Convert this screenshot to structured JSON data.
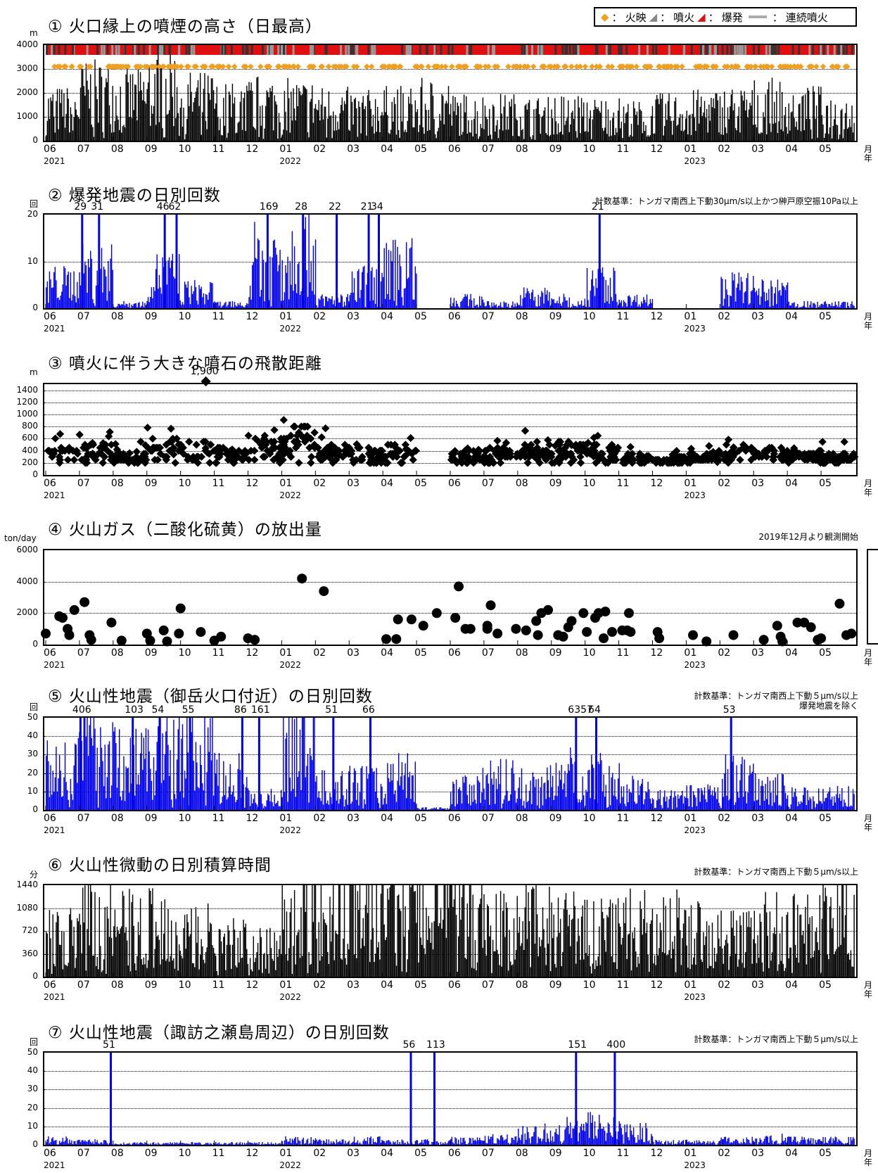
{
  "legend": {
    "glow": "火映",
    "eruption": "噴火",
    "explosion": "爆発",
    "continuous": "連続噴火",
    "sep": "："
  },
  "axis": {
    "months": [
      "06",
      "07",
      "08",
      "09",
      "10",
      "11",
      "12",
      "01",
      "02",
      "03",
      "04",
      "05",
      "06",
      "07",
      "08",
      "09",
      "10",
      "11",
      "12",
      "01",
      "02",
      "03",
      "04",
      "05"
    ],
    "years": [
      "2021",
      "2022",
      "2023"
    ],
    "month_word": "月",
    "year_word": "年"
  },
  "chart_data": [
    {
      "id": "p1",
      "type": "bar",
      "title": "① 火口縁上の噴煙の高さ（日最高）",
      "unit": "m",
      "yticks": [
        "4000",
        "3000",
        "2000",
        "1000",
        "0"
      ],
      "ylim": [
        0,
        4000
      ],
      "colors": {
        "bars": "#000000",
        "explosion": "#e01010",
        "glow": "#f0a020"
      },
      "profile": [
        1500,
        2200,
        2000,
        2600,
        1900,
        1600,
        1800,
        1700,
        1500,
        1400,
        1500,
        1700,
        1300,
        1300,
        1200,
        1300,
        1200,
        1100,
        1300,
        1400,
        1500,
        1700,
        1500,
        1300
      ],
      "peaks": [
        {
          "label": "",
          "x": 0.1,
          "y": 3200
        }
      ]
    },
    {
      "id": "p2",
      "type": "bar",
      "title": "② 爆発地震の日別回数",
      "unit": "回",
      "note": "計数基準：トンガマ南西上下動30μm/s以上かつ榊戸原空振10Pa以上",
      "yticks": [
        "20",
        "10",
        "0"
      ],
      "ylim": [
        0,
        20
      ],
      "colors": {
        "bars": "#0000ee"
      },
      "profile": [
        6,
        9,
        1,
        8,
        4,
        1,
        12,
        14,
        2,
        6,
        10,
        0,
        2,
        1,
        3,
        2,
        6,
        2,
        0,
        0,
        5,
        4,
        1,
        1
      ],
      "peak_labels": [
        {
          "label": "29",
          "month": 1.05
        },
        {
          "label": "31",
          "month": 1.55
        },
        {
          "label": "46",
          "month": 3.5
        },
        {
          "label": "62",
          "month": 3.85
        },
        {
          "label": "169",
          "month": 6.55
        },
        {
          "label": "28",
          "month": 7.6
        },
        {
          "label": "22",
          "month": 8.6
        },
        {
          "label": "21",
          "month": 9.55
        },
        {
          "label": "34",
          "month": 9.85
        },
        {
          "label": "21",
          "month": 16.4
        }
      ]
    },
    {
      "id": "p3",
      "type": "scatter",
      "title": "③ 噴火に伴う大きな噴石の飛散距離",
      "unit": "m",
      "yticks": [
        "1400",
        "1200",
        "1000",
        "800",
        "600",
        "400",
        "200",
        "0"
      ],
      "ylim": [
        0,
        1500
      ],
      "outlier": {
        "label": "1,900",
        "month": 4.75
      },
      "profile": [
        400,
        450,
        300,
        600,
        500,
        400,
        600,
        800,
        450,
        400,
        450,
        0,
        350,
        400,
        500,
        500,
        450,
        300,
        250,
        300,
        450,
        400,
        350,
        300
      ]
    },
    {
      "id": "p4",
      "type": "scatter",
      "title": "④ 火山ガス（二酸化硫黄）の放出量",
      "unit": "ton/day",
      "note": "2019年12月より観測開始",
      "yticks": [
        "6000",
        "4000",
        "2000",
        "0"
      ],
      "ylim": [
        0,
        6000
      ],
      "points": [
        {
          "m": 0.0,
          "v": 700
        },
        {
          "m": 0.4,
          "v": 1800
        },
        {
          "m": 0.5,
          "v": 1700
        },
        {
          "m": 0.65,
          "v": 1000
        },
        {
          "m": 0.7,
          "v": 600
        },
        {
          "m": 0.85,
          "v": 2200
        },
        {
          "m": 1.15,
          "v": 2700
        },
        {
          "m": 1.3,
          "v": 600
        },
        {
          "m": 1.35,
          "v": 300
        },
        {
          "m": 1.95,
          "v": 1400
        },
        {
          "m": 2.25,
          "v": 250
        },
        {
          "m": 3.0,
          "v": 700
        },
        {
          "m": 3.1,
          "v": 250
        },
        {
          "m": 3.5,
          "v": 900
        },
        {
          "m": 3.6,
          "v": 200
        },
        {
          "m": 3.95,
          "v": 700
        },
        {
          "m": 4.0,
          "v": 2300
        },
        {
          "m": 4.6,
          "v": 800
        },
        {
          "m": 5.0,
          "v": 250
        },
        {
          "m": 5.2,
          "v": 500
        },
        {
          "m": 6.0,
          "v": 400
        },
        {
          "m": 6.2,
          "v": 300
        },
        {
          "m": 7.6,
          "v": 4200
        },
        {
          "m": 8.25,
          "v": 3400
        },
        {
          "m": 10.1,
          "v": 350
        },
        {
          "m": 10.4,
          "v": 350
        },
        {
          "m": 10.45,
          "v": 1600
        },
        {
          "m": 10.85,
          "v": 1600
        },
        {
          "m": 11.2,
          "v": 1200
        },
        {
          "m": 11.6,
          "v": 2000
        },
        {
          "m": 12.15,
          "v": 1700
        },
        {
          "m": 12.25,
          "v": 3700
        },
        {
          "m": 12.45,
          "v": 1000
        },
        {
          "m": 12.6,
          "v": 1000
        },
        {
          "m": 13.1,
          "v": 1000
        },
        {
          "m": 13.1,
          "v": 1200
        },
        {
          "m": 13.2,
          "v": 2500
        },
        {
          "m": 13.4,
          "v": 700
        },
        {
          "m": 13.95,
          "v": 1000
        },
        {
          "m": 14.25,
          "v": 900
        },
        {
          "m": 14.55,
          "v": 1500
        },
        {
          "m": 14.7,
          "v": 2000
        },
        {
          "m": 14.9,
          "v": 2200
        },
        {
          "m": 14.6,
          "v": 600
        },
        {
          "m": 15.2,
          "v": 600
        },
        {
          "m": 15.35,
          "v": 500
        },
        {
          "m": 15.5,
          "v": 1100
        },
        {
          "m": 15.6,
          "v": 1500
        },
        {
          "m": 15.95,
          "v": 2000
        },
        {
          "m": 16.05,
          "v": 800
        },
        {
          "m": 16.3,
          "v": 1700
        },
        {
          "m": 16.4,
          "v": 2000
        },
        {
          "m": 16.55,
          "v": 400
        },
        {
          "m": 16.6,
          "v": 2100
        },
        {
          "m": 16.8,
          "v": 800
        },
        {
          "m": 17.1,
          "v": 900
        },
        {
          "m": 17.25,
          "v": 900
        },
        {
          "m": 17.3,
          "v": 2000
        },
        {
          "m": 17.35,
          "v": 800
        },
        {
          "m": 18.15,
          "v": 800
        },
        {
          "m": 18.2,
          "v": 400
        },
        {
          "m": 19.2,
          "v": 600
        },
        {
          "m": 19.6,
          "v": 200
        },
        {
          "m": 20.4,
          "v": 600
        },
        {
          "m": 21.3,
          "v": 300
        },
        {
          "m": 21.7,
          "v": 1200
        },
        {
          "m": 21.8,
          "v": 500
        },
        {
          "m": 21.85,
          "v": 200
        },
        {
          "m": 22.3,
          "v": 1400
        },
        {
          "m": 22.5,
          "v": 1400
        },
        {
          "m": 22.7,
          "v": 1100
        },
        {
          "m": 22.9,
          "v": 300
        },
        {
          "m": 23.0,
          "v": 400
        },
        {
          "m": 23.55,
          "v": 2600
        },
        {
          "m": 23.75,
          "v": 600
        },
        {
          "m": 23.9,
          "v": 700
        }
      ]
    },
    {
      "id": "p5",
      "type": "bar",
      "title": "⑤ 火山性地震（御岳火口付近）の日別回数",
      "unit": "回",
      "note": "計数基準：トンガマ南西上下動５μm/s以上",
      "note2": "爆発地震を除く",
      "yticks": [
        "50",
        "40",
        "30",
        "20",
        "10",
        "0"
      ],
      "ylim": [
        0,
        50
      ],
      "colors": {
        "bars": "#0000ee"
      },
      "profile": [
        28,
        38,
        30,
        36,
        35,
        22,
        8,
        46,
        14,
        16,
        22,
        1,
        16,
        18,
        16,
        22,
        20,
        12,
        7,
        9,
        20,
        14,
        8,
        9
      ],
      "peak_labels": [
        {
          "label": "406",
          "month": 1.0
        },
        {
          "label": "103",
          "month": 2.55
        },
        {
          "label": "54",
          "month": 3.35
        },
        {
          "label": "55",
          "month": 4.25
        },
        {
          "label": "86",
          "month": 5.8
        },
        {
          "label": "161",
          "month": 6.3
        },
        {
          "label": "51",
          "month": 8.5
        },
        {
          "label": "66",
          "month": 9.6
        },
        {
          "label": "6357",
          "month": 15.7
        },
        {
          "label": "64",
          "month": 16.3
        },
        {
          "label": "53",
          "month": 20.3
        }
      ]
    },
    {
      "id": "p6",
      "type": "bar",
      "title": "⑥ 火山性微動の日別積算時間",
      "unit": "分",
      "note": "計数基準：トンガマ南西上下動５μm/s以上",
      "yticks": [
        "1440",
        "1080",
        "720",
        "360",
        "0"
      ],
      "ylim": [
        0,
        1440
      ],
      "colors": {
        "bars": "#000000"
      },
      "profile": [
        700,
        1000,
        900,
        950,
        800,
        600,
        500,
        1300,
        1200,
        1250,
        1300,
        1350,
        1100,
        900,
        1000,
        900,
        800,
        900,
        900,
        800,
        700,
        900,
        900,
        1000
      ]
    },
    {
      "id": "p7",
      "type": "bar",
      "title": "⑦ 火山性地震（諏訪之瀬島周辺）の日別回数",
      "unit": "回",
      "note": "計数基準：トンガマ南西上下動５μm/s以上",
      "yticks": [
        "50",
        "40",
        "30",
        "20",
        "10",
        "0"
      ],
      "ylim": [
        0,
        50
      ],
      "colors": {
        "bars": "#0000ee"
      },
      "profile": [
        3,
        2,
        1,
        1,
        1,
        1,
        1,
        3,
        2,
        3,
        2,
        2,
        3,
        4,
        8,
        10,
        12,
        9,
        2,
        2,
        3,
        4,
        3,
        3
      ],
      "peak_labels": [
        {
          "label": "51",
          "month": 1.9
        },
        {
          "label": "56",
          "month": 10.8
        },
        {
          "label": "113",
          "month": 11.5
        },
        {
          "label": "151",
          "month": 15.7
        },
        {
          "label": "400",
          "month": 16.85
        }
      ]
    }
  ]
}
